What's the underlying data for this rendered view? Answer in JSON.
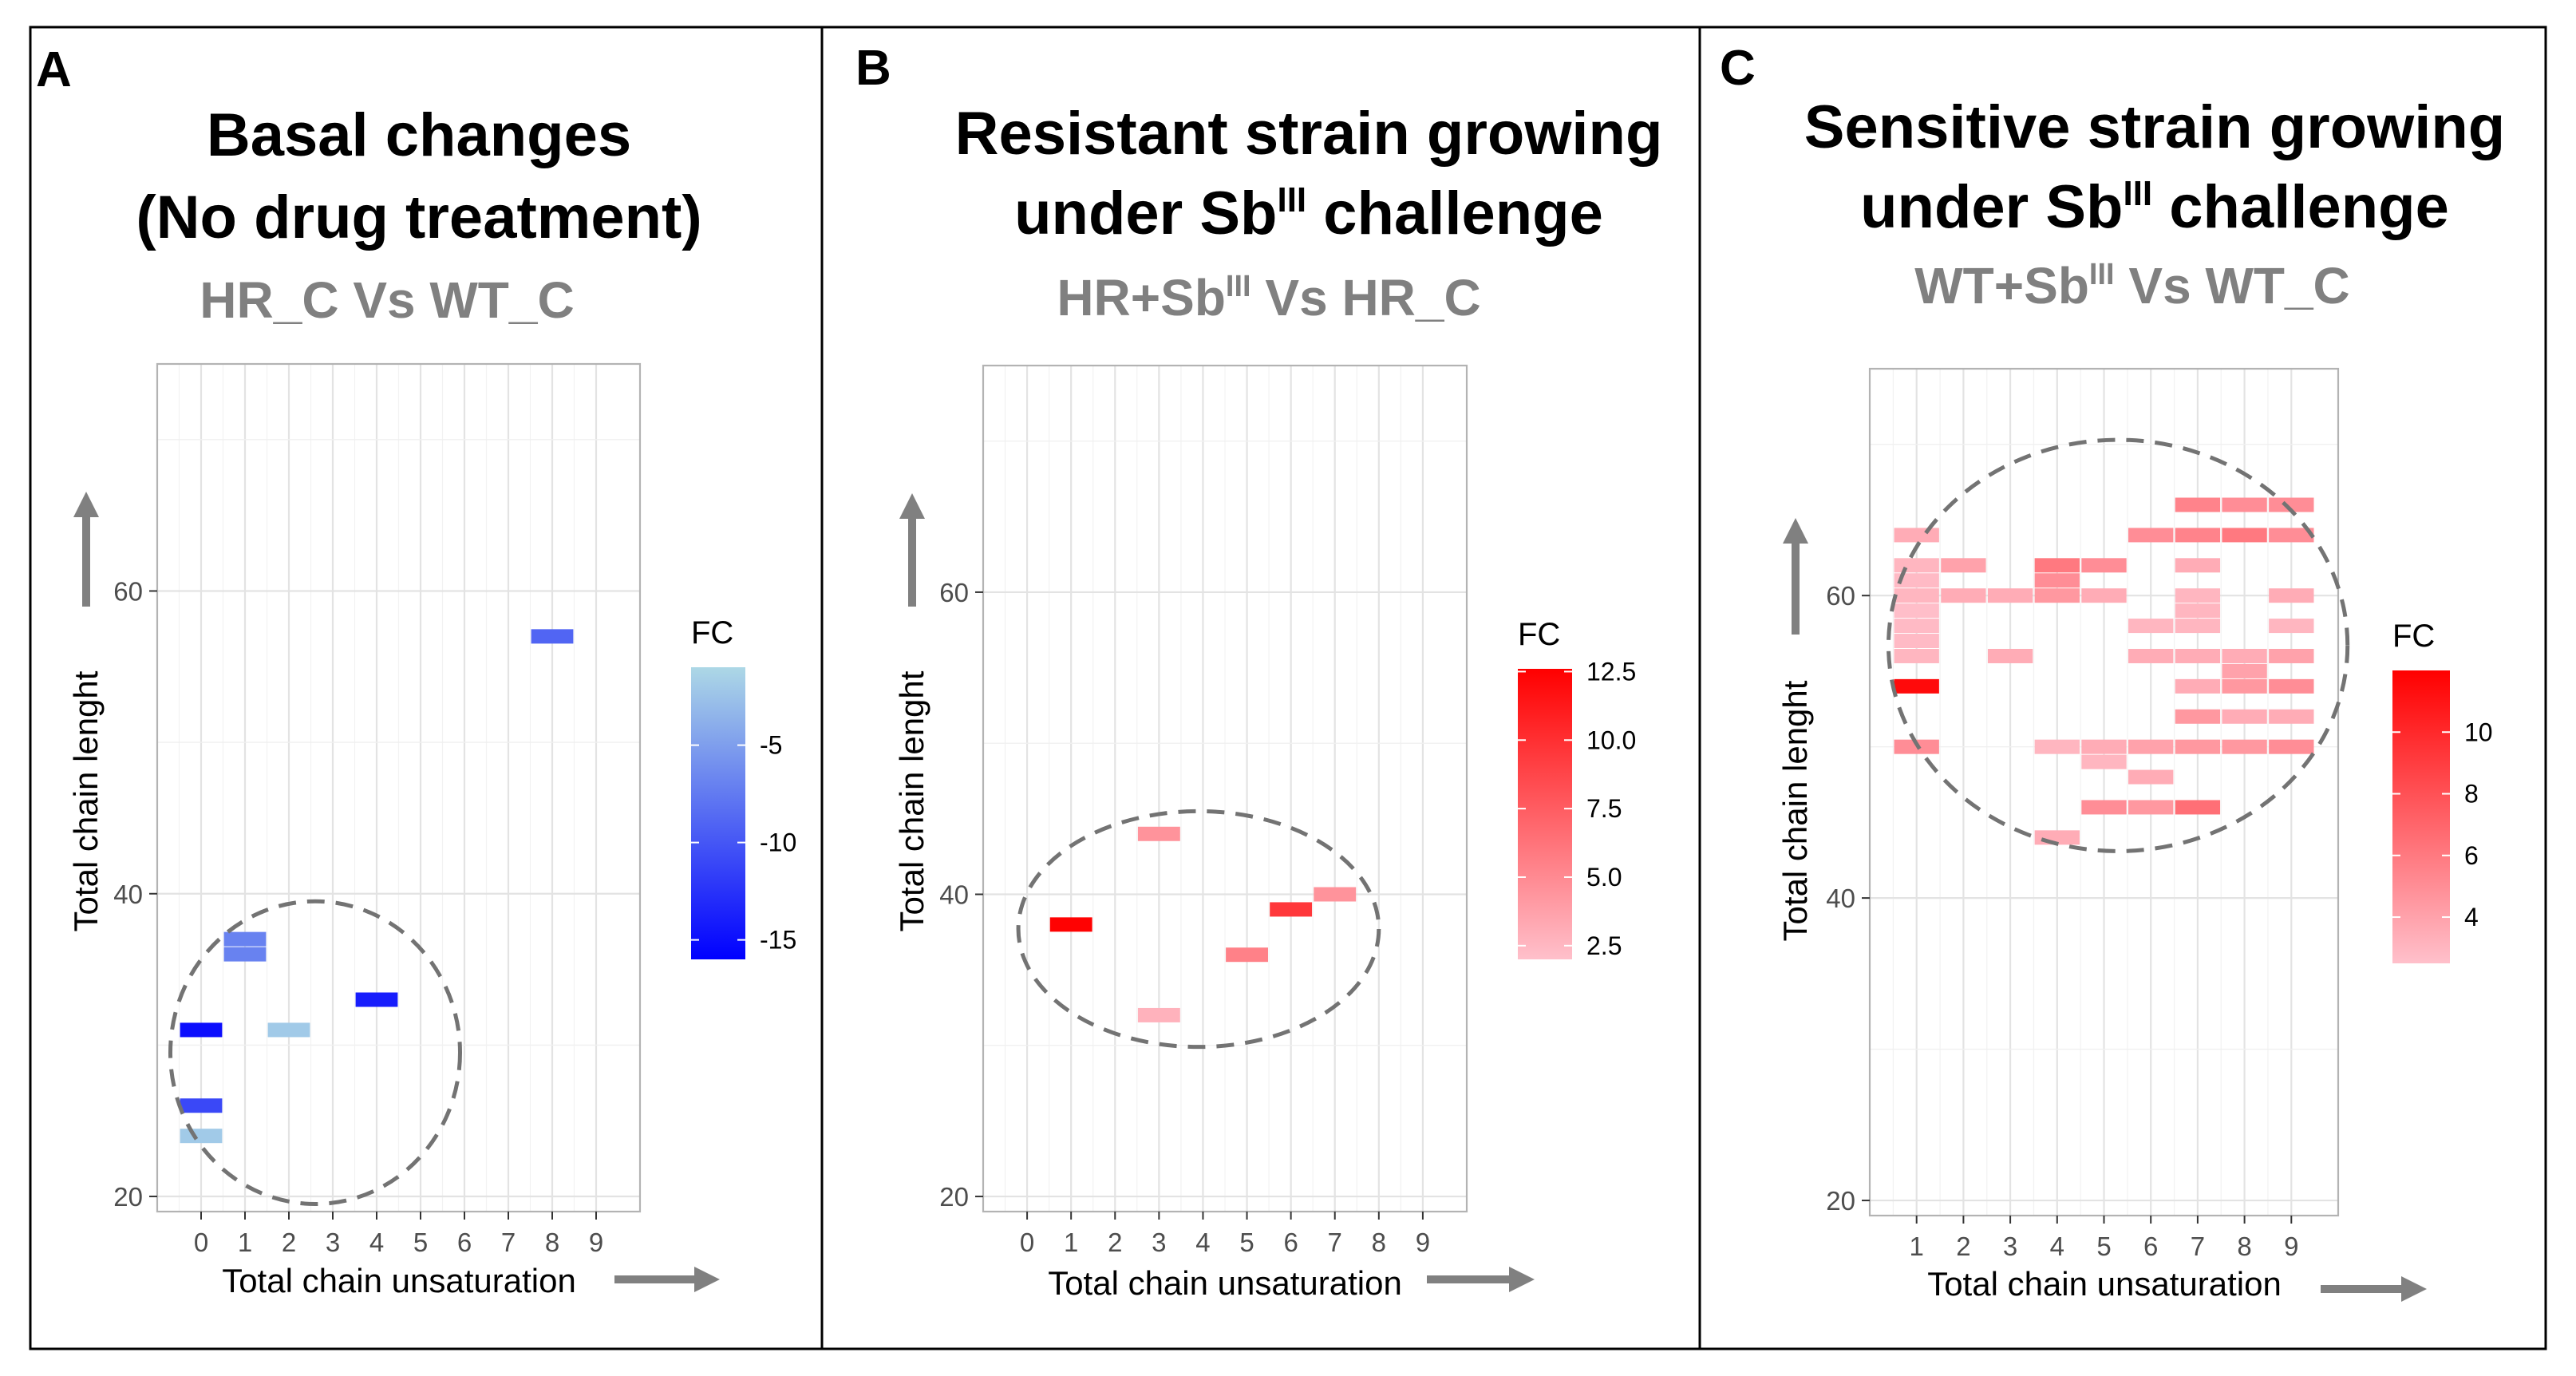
{
  "panels": [
    {
      "letter": "A",
      "title_line1": "Basal changes",
      "title_line2": "(No drug treatment)",
      "title_line2_pre": "",
      "title_line2_sup": "",
      "title_line2_post": "",
      "comparison_pre": "HR_C Vs WT_C",
      "comparison_sup": "",
      "comparison_post": ""
    },
    {
      "letter": "B",
      "title_line1": "Resistant strain growing",
      "title_line2": "",
      "title_line2_pre": "under Sb",
      "title_line2_sup": "III",
      "title_line2_post": " challenge",
      "comparison_pre": "HR+Sb",
      "comparison_sup": "III",
      "comparison_post": " Vs HR_C"
    },
    {
      "letter": "C",
      "title_line1": "Sensitive strain growing",
      "title_line2": "",
      "title_line2_pre": "under Sb",
      "title_line2_sup": "III",
      "title_line2_post": " challenge",
      "comparison_pre": "WT+Sb",
      "comparison_sup": "III",
      "comparison_post": " Vs WT_C"
    }
  ],
  "chart_data": [
    {
      "type": "heatmap",
      "panel": "A",
      "xlabel": "Total chain unsaturation",
      "ylabel": "Total chain lenght",
      "x_ticks": [
        0,
        1,
        2,
        3,
        4,
        5,
        6,
        7,
        8,
        9
      ],
      "y_ticks": [
        20,
        40,
        60
      ],
      "xlim": [
        -1,
        10
      ],
      "ylim": [
        19,
        75
      ],
      "legend_title": "FC",
      "color_low": "#0000ff",
      "color_high": "#add8e6",
      "fc_range": [
        -16,
        -1
      ],
      "legend_ticks": [
        -5,
        -10,
        -15
      ],
      "cells": [
        {
          "x": 8,
          "y": 57,
          "fc": -9
        },
        {
          "x": 1,
          "y": 37,
          "fc": -7
        },
        {
          "x": 1,
          "y": 36,
          "fc": -7
        },
        {
          "x": 0,
          "y": 31,
          "fc": -15
        },
        {
          "x": 2,
          "y": 31,
          "fc": -2
        },
        {
          "x": 4,
          "y": 33,
          "fc": -14
        },
        {
          "x": 0,
          "y": 26,
          "fc": -11
        },
        {
          "x": 0,
          "y": 24,
          "fc": -2
        }
      ],
      "ellipse": {
        "cx": 2.6,
        "cy": 29.5,
        "rx": 3.3,
        "ry": 10
      }
    },
    {
      "type": "heatmap",
      "panel": "B",
      "xlabel": "Total chain unsaturation",
      "ylabel": "Total chain lenght",
      "x_ticks": [
        0,
        1,
        2,
        3,
        4,
        5,
        6,
        7,
        8,
        9
      ],
      "y_ticks": [
        20,
        40,
        60
      ],
      "xlim": [
        -1,
        10
      ],
      "ylim": [
        19,
        75
      ],
      "legend_title": "FC",
      "color_low": "#ffc0cb",
      "color_high": "#ff0000",
      "fc_range": [
        2,
        12.6
      ],
      "legend_ticks": [
        12.5,
        10.0,
        7.5,
        5.0,
        2.5
      ],
      "cells": [
        {
          "x": 1,
          "y": 38,
          "fc": 12.5
        },
        {
          "x": 3,
          "y": 44,
          "fc": 4.5
        },
        {
          "x": 3,
          "y": 32,
          "fc": 2.8
        },
        {
          "x": 5,
          "y": 36,
          "fc": 5.5
        },
        {
          "x": 6,
          "y": 39,
          "fc": 9.5
        },
        {
          "x": 7,
          "y": 40,
          "fc": 4.5
        }
      ],
      "ellipse": {
        "cx": 3.9,
        "cy": 37.7,
        "rx": 4.1,
        "ry": 7.8
      }
    },
    {
      "type": "heatmap",
      "panel": "C",
      "xlabel": "Total chain unsaturation",
      "ylabel": "Total chain lenght",
      "x_ticks": [
        1,
        2,
        3,
        4,
        5,
        6,
        7,
        8,
        9
      ],
      "y_ticks": [
        20,
        40,
        60
      ],
      "xlim": [
        0,
        10
      ],
      "ylim": [
        19,
        75
      ],
      "legend_title": "FC",
      "color_low": "#ffc0cb",
      "color_high": "#ff0000",
      "fc_range": [
        2.5,
        12
      ],
      "legend_ticks": [
        10,
        8,
        6,
        4
      ],
      "cells": [
        {
          "x": 1,
          "y": 64,
          "fc": 3.5
        },
        {
          "x": 1,
          "y": 62,
          "fc": 3
        },
        {
          "x": 1,
          "y": 61,
          "fc": 2.8
        },
        {
          "x": 1,
          "y": 60,
          "fc": 3
        },
        {
          "x": 1,
          "y": 59,
          "fc": 2.6
        },
        {
          "x": 1,
          "y": 58,
          "fc": 2.8
        },
        {
          "x": 1,
          "y": 57,
          "fc": 2.8
        },
        {
          "x": 1,
          "y": 56,
          "fc": 3
        },
        {
          "x": 1,
          "y": 54,
          "fc": 11.5
        },
        {
          "x": 1,
          "y": 50,
          "fc": 5
        },
        {
          "x": 2,
          "y": 62,
          "fc": 4
        },
        {
          "x": 2,
          "y": 60,
          "fc": 3.5
        },
        {
          "x": 3,
          "y": 60,
          "fc": 3.5
        },
        {
          "x": 3,
          "y": 56,
          "fc": 3.5
        },
        {
          "x": 4,
          "y": 62,
          "fc": 6
        },
        {
          "x": 4,
          "y": 61,
          "fc": 5
        },
        {
          "x": 4,
          "y": 60,
          "fc": 4.5
        },
        {
          "x": 4,
          "y": 50,
          "fc": 3
        },
        {
          "x": 4,
          "y": 44,
          "fc": 3.5
        },
        {
          "x": 5,
          "y": 62,
          "fc": 5
        },
        {
          "x": 5,
          "y": 60,
          "fc": 3.5
        },
        {
          "x": 5,
          "y": 50,
          "fc": 3.5
        },
        {
          "x": 5,
          "y": 49,
          "fc": 3
        },
        {
          "x": 5,
          "y": 46,
          "fc": 5
        },
        {
          "x": 6,
          "y": 64,
          "fc": 5
        },
        {
          "x": 6,
          "y": 58,
          "fc": 3
        },
        {
          "x": 6,
          "y": 56,
          "fc": 3.5
        },
        {
          "x": 6,
          "y": 50,
          "fc": 4
        },
        {
          "x": 6,
          "y": 48,
          "fc": 3.5
        },
        {
          "x": 6,
          "y": 46,
          "fc": 4.5
        },
        {
          "x": 7,
          "y": 66,
          "fc": 5.5
        },
        {
          "x": 7,
          "y": 64,
          "fc": 5.5
        },
        {
          "x": 7,
          "y": 62,
          "fc": 3.5
        },
        {
          "x": 7,
          "y": 60,
          "fc": 3
        },
        {
          "x": 7,
          "y": 59,
          "fc": 3
        },
        {
          "x": 7,
          "y": 58,
          "fc": 3
        },
        {
          "x": 7,
          "y": 56,
          "fc": 3.5
        },
        {
          "x": 7,
          "y": 54,
          "fc": 3.5
        },
        {
          "x": 7,
          "y": 52,
          "fc": 4.5
        },
        {
          "x": 7,
          "y": 50,
          "fc": 4.5
        },
        {
          "x": 7,
          "y": 46,
          "fc": 6.5
        },
        {
          "x": 8,
          "y": 66,
          "fc": 5
        },
        {
          "x": 8,
          "y": 64,
          "fc": 6
        },
        {
          "x": 8,
          "y": 56,
          "fc": 3.5
        },
        {
          "x": 8,
          "y": 55,
          "fc": 4
        },
        {
          "x": 8,
          "y": 54,
          "fc": 4.5
        },
        {
          "x": 8,
          "y": 52,
          "fc": 3.5
        },
        {
          "x": 8,
          "y": 50,
          "fc": 4.5
        },
        {
          "x": 9,
          "y": 66,
          "fc": 5
        },
        {
          "x": 9,
          "y": 64,
          "fc": 5
        },
        {
          "x": 9,
          "y": 60,
          "fc": 3.5
        },
        {
          "x": 9,
          "y": 58,
          "fc": 3
        },
        {
          "x": 9,
          "y": 56,
          "fc": 4
        },
        {
          "x": 9,
          "y": 54,
          "fc": 5
        },
        {
          "x": 9,
          "y": 52,
          "fc": 3.5
        },
        {
          "x": 9,
          "y": 50,
          "fc": 5
        }
      ],
      "ellipse": {
        "cx": 5.3,
        "cy": 56.7,
        "rx": 4.9,
        "ry": 13.6
      }
    }
  ]
}
